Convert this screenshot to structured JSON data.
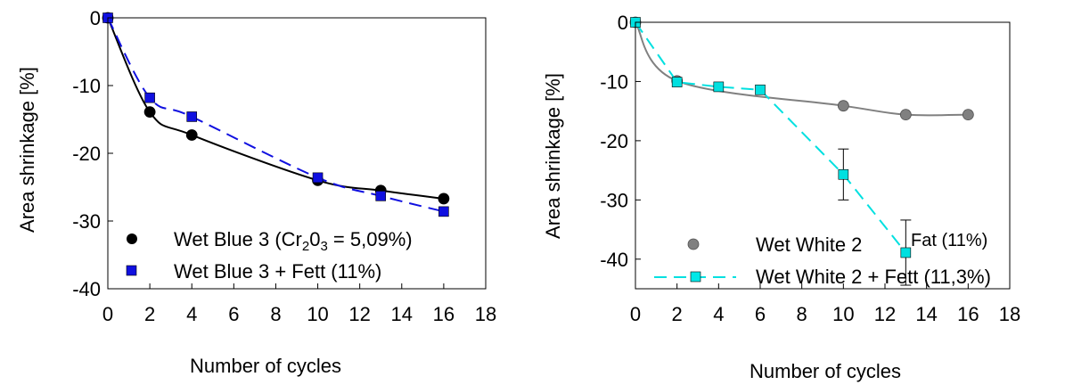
{
  "chart_data": [
    {
      "type": "scatter",
      "title": "",
      "xlabel": "Number of cycles",
      "ylabel": "Area shrinkage [%]",
      "xlim": [
        0,
        18
      ],
      "ylim": [
        -40,
        0
      ],
      "xticks": [
        0,
        2,
        4,
        6,
        8,
        10,
        12,
        14,
        16,
        18
      ],
      "yticks": [
        0,
        -10,
        -20,
        -30,
        -40
      ],
      "grid": false,
      "legend_position": "bottom-right",
      "series": [
        {
          "name": "Wet Blue 3 (Cr",
          "name_sub1": "2",
          "name_mid": "0",
          "name_sub2": "3",
          "name_end": " = 5,09%)",
          "marker": "circle",
          "color": "#000000",
          "line_style": "solid",
          "x": [
            0,
            2,
            4,
            10,
            13,
            16
          ],
          "y": [
            0,
            -13.9,
            -17.3,
            -24.0,
            -25.5,
            -26.7
          ]
        },
        {
          "name": "Wet Blue 3 + Fett (11%)",
          "marker": "square",
          "color": "#1010e0",
          "line_style": "dashed",
          "x": [
            0,
            2,
            4,
            10,
            13,
            16
          ],
          "y": [
            0,
            -11.8,
            -14.6,
            -23.6,
            -26.3,
            -28.6
          ]
        }
      ]
    },
    {
      "type": "scatter",
      "title": "",
      "xlabel": "Number of cycles",
      "ylabel": "Area shrinkage [%]",
      "xlim": [
        0,
        18
      ],
      "ylim": [
        -45,
        0
      ],
      "xticks": [
        0,
        2,
        4,
        6,
        8,
        10,
        12,
        14,
        16,
        18
      ],
      "yticks": [
        0,
        -10,
        -20,
        -30,
        -40
      ],
      "grid": false,
      "legend_position": "bottom-right",
      "series": [
        {
          "name": "Wet White 2",
          "marker": "circle",
          "color": "#808080",
          "line_style": "solid",
          "x": [
            0,
            2,
            10,
            13,
            16
          ],
          "y": [
            0,
            -9.9,
            -14.1,
            -15.6,
            -15.6
          ]
        },
        {
          "name": "Wet White 2 + Fett (11,3%)",
          "marker": "square",
          "color": "#00e0e0",
          "line_style": "dashed",
          "x": [
            0,
            2,
            4,
            6,
            10,
            13
          ],
          "y": [
            0,
            -10.1,
            -10.9,
            -11.4,
            -25.7,
            -38.9
          ],
          "error_low": [
            0,
            0,
            0,
            0,
            4.3,
            5.5
          ],
          "error_high": [
            0,
            0,
            0,
            0,
            4.3,
            5.5
          ]
        }
      ],
      "annotations": [
        "Fat (11%)"
      ]
    }
  ]
}
